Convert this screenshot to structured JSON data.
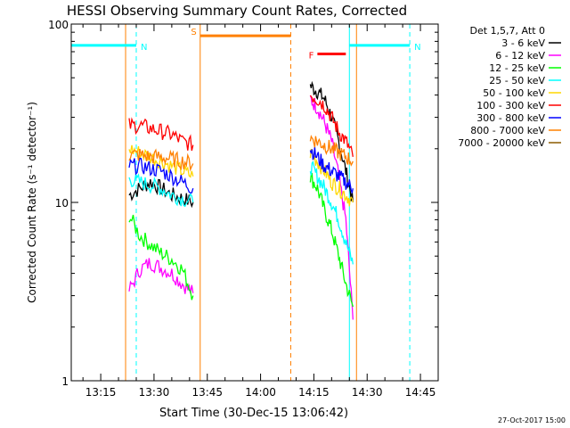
{
  "chart_data": {
    "type": "line",
    "title": "HESSI Observing Summary Count Rates, Corrected",
    "xlabel": "Start Time (30-Dec-15 13:06:42)",
    "ylabel": "Corrected Count Rate (s⁻¹ detector⁻¹)",
    "xlim": [
      "13:06:42",
      "14:50:00"
    ],
    "ylim": [
      1,
      100
    ],
    "yscale": "log",
    "x_ticks": [
      "13:15",
      "13:30",
      "13:45",
      "14:00",
      "14:15",
      "14:30",
      "14:45"
    ],
    "y_ticks": [
      "1",
      "10",
      "100"
    ],
    "grid": false,
    "legend_position": "right",
    "legend_header": "Det 1,5,7, Att 0",
    "series": [
      {
        "name": "3 - 6 keV",
        "color": "#000000",
        "segments": [
          {
            "x": [
              "13:23",
              "13:26",
              "13:29",
              "13:32",
              "13:35",
              "13:38",
              "13:41"
            ],
            "y": [
              11,
              12,
              13,
              12,
              11,
              10.5,
              10
            ]
          },
          {
            "x": [
              "14:14",
              "14:16",
              "14:18",
              "14:20",
              "14:22",
              "14:24",
              "14:26"
            ],
            "y": [
              45,
              42,
              38,
              30,
              22,
              15,
              10
            ]
          }
        ]
      },
      {
        "name": "6 - 12 keV",
        "color": "#ff00ff",
        "segments": [
          {
            "x": [
              "13:23",
              "13:26",
              "13:29",
              "13:32",
              "13:35",
              "13:38",
              "13:41"
            ],
            "y": [
              3.2,
              4.2,
              4.6,
              4.3,
              4.0,
              3.5,
              3.1
            ]
          },
          {
            "x": [
              "14:14",
              "14:16",
              "14:18",
              "14:20",
              "14:22",
              "14:24",
              "14:26"
            ],
            "y": [
              38,
              34,
              28,
              22,
              14,
              8,
              2.2
            ]
          }
        ]
      },
      {
        "name": "12 - 25 keV",
        "color": "#00ff00",
        "segments": [
          {
            "x": [
              "13:23",
              "13:26",
              "13:29",
              "13:32",
              "13:35",
              "13:38",
              "13:41"
            ],
            "y": [
              8.5,
              6.5,
              5.8,
              5.2,
              4.8,
              4.2,
              3.0
            ]
          },
          {
            "x": [
              "14:14",
              "14:16",
              "14:18",
              "14:20",
              "14:22",
              "14:24",
              "14:26"
            ],
            "y": [
              14,
              12,
              9,
              7,
              5,
              3.5,
              2.6
            ]
          }
        ]
      },
      {
        "name": "25 - 50 keV",
        "color": "#00ffff",
        "segments": [
          {
            "x": [
              "13:23",
              "13:26",
              "13:29",
              "13:32",
              "13:35",
              "13:38",
              "13:41"
            ],
            "y": [
              13.5,
              13,
              12.5,
              12,
              11,
              10.5,
              10
            ]
          },
          {
            "x": [
              "14:14",
              "14:16",
              "14:18",
              "14:20",
              "14:22",
              "14:24",
              "14:26"
            ],
            "y": [
              16,
              14,
              12,
              10,
              8,
              6,
              4.5
            ]
          }
        ]
      },
      {
        "name": "50 - 100 keV",
        "color": "#ffd700",
        "segments": [
          {
            "x": [
              "13:23",
              "13:26",
              "13:29",
              "13:32",
              "13:35",
              "13:38",
              "13:41"
            ],
            "y": [
              20,
              19,
              18,
              17,
              16,
              15,
              14
            ]
          },
          {
            "x": [
              "14:14",
              "14:16",
              "14:18",
              "14:20",
              "14:22",
              "14:24",
              "14:26"
            ],
            "y": [
              19,
              17,
              15,
              13,
              12,
              11,
              10
            ]
          }
        ]
      },
      {
        "name": "100 - 300 keV",
        "color": "#ff0000",
        "segments": [
          {
            "x": [
              "13:23",
              "13:26",
              "13:29",
              "13:32",
              "13:35",
              "13:38",
              "13:41"
            ],
            "y": [
              27,
              27,
              26,
              25,
              24,
              22,
              21
            ]
          },
          {
            "x": [
              "14:14",
              "14:16",
              "14:18",
              "14:20",
              "14:22",
              "14:24",
              "14:26"
            ],
            "y": [
              40,
              38,
              35,
              30,
              25,
              22,
              18
            ]
          }
        ]
      },
      {
        "name": "300 - 800 keV",
        "color": "#0000ff",
        "segments": [
          {
            "x": [
              "13:23",
              "13:26",
              "13:29",
              "13:32",
              "13:35",
              "13:38",
              "13:41"
            ],
            "y": [
              16,
              16,
              15.5,
              15,
              14,
              13,
              12
            ]
          },
          {
            "x": [
              "14:14",
              "14:16",
              "14:18",
              "14:20",
              "14:22",
              "14:24",
              "14:26"
            ],
            "y": [
              20,
              18,
              16,
              15,
              14,
              13,
              12
            ]
          }
        ]
      },
      {
        "name": "800 - 7000 keV",
        "color": "#ff8000",
        "segments": [
          {
            "x": [
              "13:23",
              "13:26",
              "13:29",
              "13:32",
              "13:35",
              "13:38",
              "13:41"
            ],
            "y": [
              18.5,
              18.5,
              18,
              18,
              17.5,
              17,
              16.5
            ]
          },
          {
            "x": [
              "14:14",
              "14:16",
              "14:18",
              "14:20",
              "14:22",
              "14:24",
              "14:26"
            ],
            "y": [
              23,
              22,
              21,
              20,
              19,
              18,
              17
            ]
          }
        ]
      },
      {
        "name": "7000 - 20000 keV",
        "color": "#8b5a00",
        "segments": []
      }
    ],
    "annotations": [
      {
        "label": "N",
        "color": "#00ffff",
        "type": "bar",
        "x_start": "13:06:42",
        "x_end": "13:25:00",
        "level": 76
      },
      {
        "label": "N",
        "color": "#00ffff",
        "type": "bar",
        "x_start": "14:25:00",
        "x_end": "14:42:00",
        "level": 76
      },
      {
        "label": "S",
        "color": "#ff8000",
        "type": "bar",
        "x_start": "13:43:00",
        "x_end": "14:08:30",
        "level": 86
      },
      {
        "label": "F",
        "color": "#ff0000",
        "type": "bar",
        "x_start": "14:16:00",
        "x_end": "14:24:00",
        "level": 68
      }
    ],
    "vertical_lines": [
      {
        "x": "13:06:42",
        "color": "#00ffff",
        "style": "solid"
      },
      {
        "x": "13:22:00",
        "color": "#ff8000",
        "style": "solid"
      },
      {
        "x": "13:25:00",
        "color": "#00ffff",
        "style": "dashed"
      },
      {
        "x": "13:43:00",
        "color": "#ff8000",
        "style": "solid"
      },
      {
        "x": "14:08:30",
        "color": "#ff8000",
        "style": "dashed"
      },
      {
        "x": "14:25:00",
        "color": "#00ffff",
        "style": "solid"
      },
      {
        "x": "14:27:00",
        "color": "#ff8000",
        "style": "solid"
      },
      {
        "x": "14:42:00",
        "color": "#00ffff",
        "style": "dashed"
      }
    ]
  },
  "footer_timestamp": "27-Oct-2017 15:00"
}
